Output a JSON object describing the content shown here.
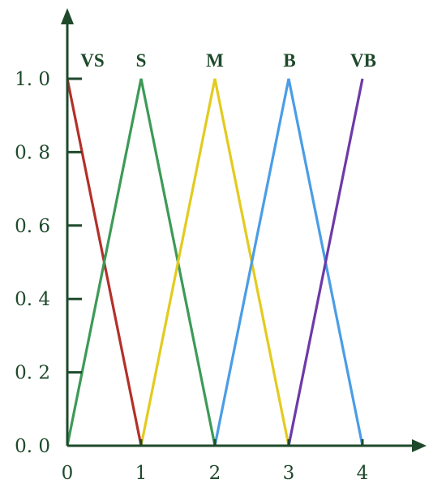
{
  "chart_data": {
    "type": "line",
    "x_ticks": [
      "0",
      "1",
      "2",
      "3",
      "4"
    ],
    "y_ticks": [
      "0. 0",
      "0. 2",
      "0. 4",
      "0. 6",
      "0. 8",
      "1. 0"
    ],
    "xlim": [
      0,
      4.8
    ],
    "ylim": [
      0,
      1.2
    ],
    "grid": false,
    "axis_color": "#1e4a2b",
    "series": [
      {
        "name": "VS",
        "color": "#b3302a",
        "x": [
          0,
          1
        ],
        "y": [
          1.0,
          0.0
        ]
      },
      {
        "name": "S",
        "color": "#3d9a57",
        "x": [
          0,
          1,
          2
        ],
        "y": [
          0.0,
          1.0,
          0.0
        ]
      },
      {
        "name": "M",
        "color": "#e3cb1f",
        "x": [
          1,
          2,
          3
        ],
        "y": [
          0.0,
          1.0,
          0.0
        ]
      },
      {
        "name": "B",
        "color": "#4a9de6",
        "x": [
          2,
          3,
          4
        ],
        "y": [
          0.0,
          1.0,
          0.0
        ]
      },
      {
        "name": "VB",
        "color": "#6d3aa8",
        "x": [
          3,
          4
        ],
        "y": [
          0.0,
          1.0
        ]
      }
    ]
  }
}
